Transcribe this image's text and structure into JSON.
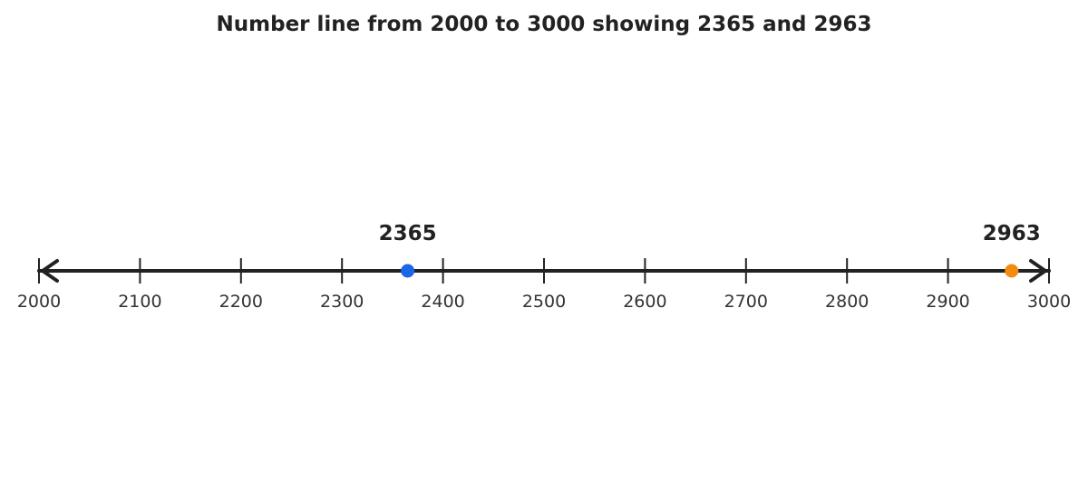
{
  "title": "Number line from 2000 to 3000 showing 2365 and 2963",
  "chart_data": {
    "type": "number-line",
    "min": 2000,
    "max": 3000,
    "step": 100,
    "ticks": [
      "2000",
      "2100",
      "2200",
      "2300",
      "2400",
      "2500",
      "2600",
      "2700",
      "2800",
      "2900",
      "3000"
    ],
    "arrows": "both-ends",
    "points": [
      {
        "value": 2365,
        "label": "2365",
        "color": "#1a66e6"
      },
      {
        "value": 2963,
        "label": "2963",
        "color": "#f28c0f"
      }
    ]
  },
  "colors": {
    "line": "#222222",
    "text": "#222222"
  }
}
